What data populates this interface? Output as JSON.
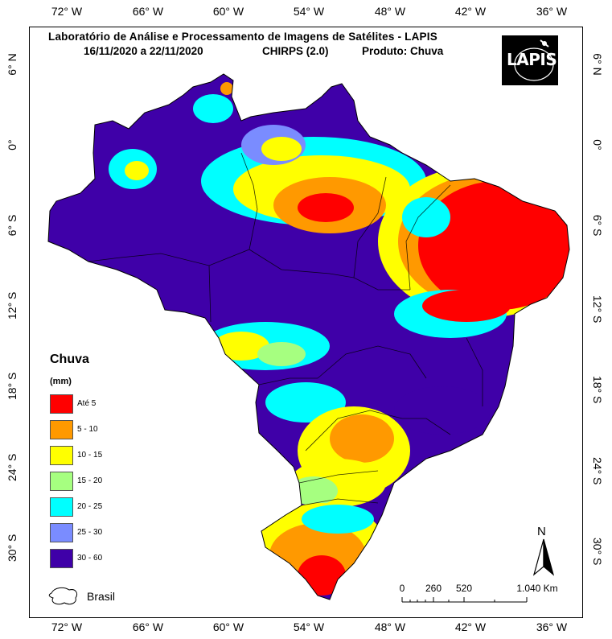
{
  "header": {
    "title": "Laboratório de Análise e Processamento de Imagens de Satélites - LAPIS",
    "date_range": "16/11/2020  a  22/11/2020",
    "source": "CHIRPS (2.0)",
    "product": "Produto: Chuva"
  },
  "logo": {
    "text": "LAPIS",
    "icon": "satellite-icon"
  },
  "axes": {
    "longitude_ticks": [
      "72° W",
      "66° W",
      "60° W",
      "54° W",
      "48° W",
      "42° W",
      "36° W"
    ],
    "latitude_ticks": [
      "6° N",
      "0°",
      "6° S",
      "12° S",
      "18° S",
      "24° S",
      "30° S"
    ]
  },
  "legend": {
    "title": "Chuva",
    "unit": "(mm)",
    "items": [
      {
        "label": "Até 5",
        "color": "#ff0000"
      },
      {
        "label": "5 - 10",
        "color": "#ff9900"
      },
      {
        "label": "10 - 15",
        "color": "#ffff00"
      },
      {
        "label": "15 - 20",
        "color": "#a6ff80"
      },
      {
        "label": "20 - 25",
        "color": "#00ffff"
      },
      {
        "label": "25 - 30",
        "color": "#7a8cff"
      },
      {
        "label": "30 - 60",
        "color": "#3f00a8"
      }
    ],
    "outline_label": "Brasil"
  },
  "scale_bar": {
    "labels": [
      "0",
      "260",
      "520",
      "1.040 Km"
    ]
  },
  "north_arrow": {
    "label": "N",
    "icon": "north-arrow-icon"
  }
}
